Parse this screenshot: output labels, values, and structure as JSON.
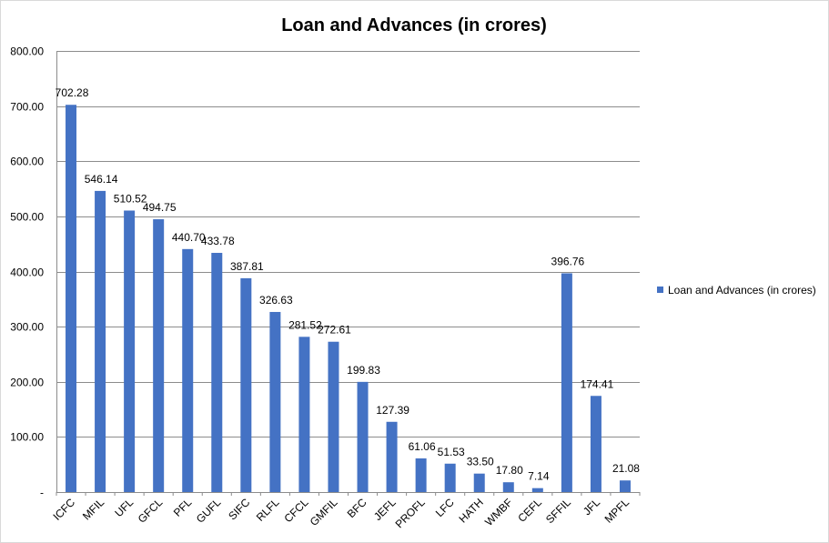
{
  "chart_data": {
    "type": "bar",
    "title": "Loan and Advances (in crores)",
    "xlabel": "",
    "ylabel": "",
    "ylim": [
      0,
      800
    ],
    "yticks": [
      0,
      100,
      200,
      300,
      400,
      500,
      600,
      700,
      800
    ],
    "ytick_labels": [
      "-",
      "100.00",
      "200.00",
      "300.00",
      "400.00",
      "500.00",
      "600.00",
      "700.00",
      "800.00"
    ],
    "grid": true,
    "legend_position": "right",
    "categories": [
      "ICFC",
      "MFIL",
      "UFL",
      "GFCL",
      "PFL",
      "GUFL",
      "SIFC",
      "RLFL",
      "CFCL",
      "GMFIL",
      "BFC",
      "JEFL",
      "PROFL",
      "LFC",
      "HATH",
      "WMBF",
      "CEFL",
      "SFFIL",
      "JFL",
      "MPFL"
    ],
    "series": [
      {
        "name": "Loan and Advances (in crores)",
        "color": "#4472c4",
        "values": [
          702.28,
          546.14,
          510.52,
          494.75,
          440.7,
          433.78,
          387.81,
          326.63,
          281.52,
          272.61,
          199.83,
          127.39,
          61.06,
          51.53,
          33.5,
          17.8,
          7.14,
          396.76,
          174.41,
          21.08
        ],
        "labels": [
          "702.28",
          "546.14",
          "510.52",
          "494.75",
          "440.70",
          "433.78",
          "387.81",
          "326.63",
          "281.52",
          "272.61",
          "199.83",
          "127.39",
          "61.06",
          "51.53",
          "33.50",
          "17.80",
          "7.14",
          "396.76",
          "174.41",
          "21.08"
        ]
      }
    ]
  }
}
